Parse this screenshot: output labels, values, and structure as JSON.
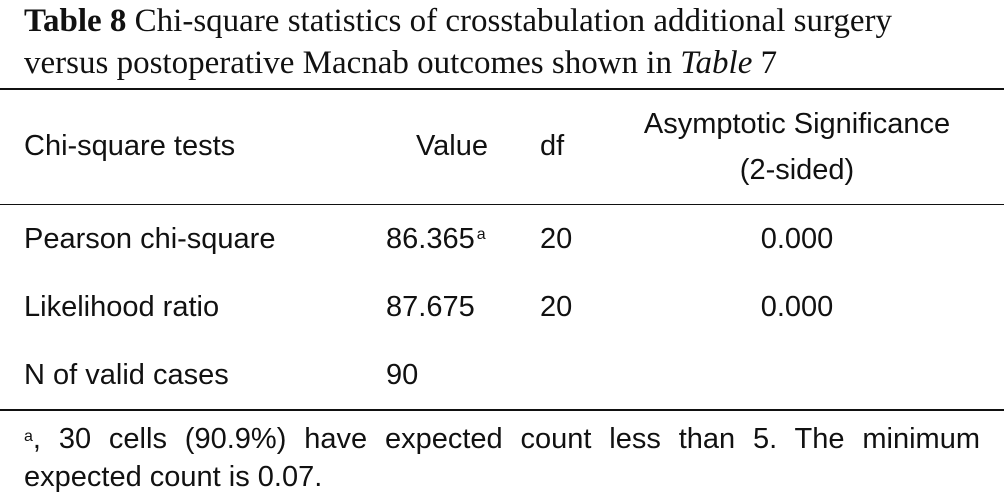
{
  "caption": {
    "label": "Table 8",
    "text_before": "Chi-square statistics of crosstabulation additional surgery versus postoperative Macnab outcomes shown in",
    "ref_italic": "Table",
    "ref_number": "7"
  },
  "table": {
    "headers": {
      "test": "Chi-square tests",
      "value": "Value",
      "df": "df",
      "sig_line1": "Asymptotic Significance",
      "sig_line2": "(2-sided)"
    },
    "rows": [
      {
        "test": "Pearson chi-square",
        "value": "86.365",
        "note": "a",
        "df": "20",
        "sig": "0.000"
      },
      {
        "test": "Likelihood ratio",
        "value": "87.675",
        "note": "",
        "df": "20",
        "sig": "0.000"
      },
      {
        "test": "N of valid cases",
        "value": "90",
        "note": "",
        "df": "",
        "sig": ""
      }
    ]
  },
  "footnote": {
    "marker": "a",
    "text": ", 30 cells (90.9%) have expected count less than 5. The minimum expected count is 0.07."
  }
}
